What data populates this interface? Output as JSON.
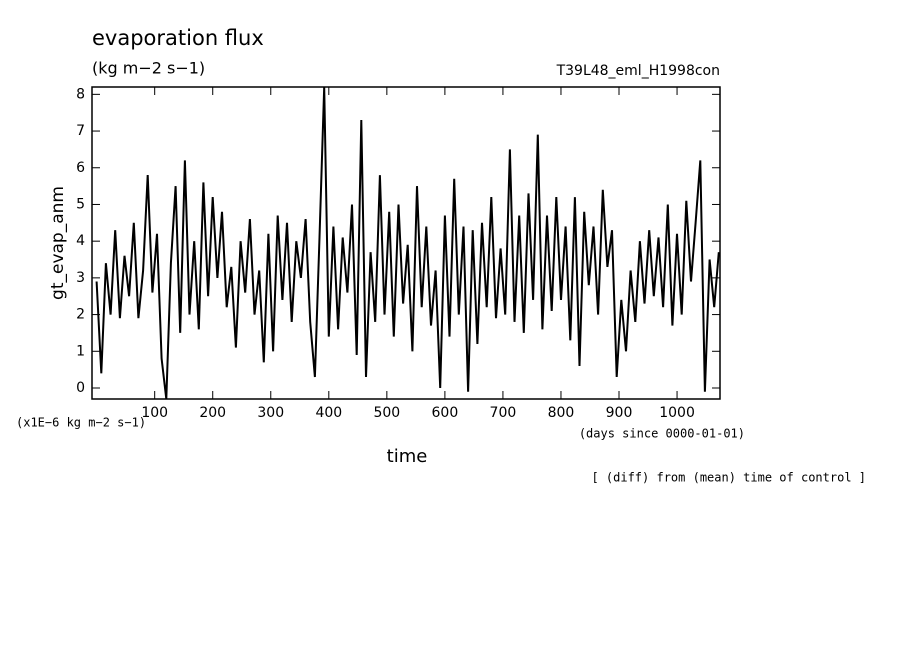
{
  "chart_data": {
    "type": "line",
    "title": "evaporation flux",
    "subtitle": "(kg m−2 s−1)",
    "run_label": "T39L48_eml_H1998con",
    "y_label": "gt_evap_anm",
    "y_unit_label": "(x1E−6 kg m−2 s−1)",
    "x_label": "time",
    "x_unit_label": "(days since 0000-01-01)",
    "note": "[ (diff) from (mean) time of control ]",
    "xlim": [
      -8,
      1074
    ],
    "ylim": [
      -0.3,
      8.2
    ],
    "xticks": [
      100,
      200,
      300,
      400,
      500,
      600,
      700,
      800,
      900,
      1000
    ],
    "yticks": [
      0,
      1,
      2,
      3,
      4,
      5,
      6,
      7,
      8
    ],
    "color": "#000000",
    "x": [
      0,
      8,
      16,
      24,
      32,
      40,
      48,
      56,
      64,
      72,
      80,
      88,
      96,
      104,
      112,
      120,
      128,
      136,
      144,
      152,
      160,
      168,
      176,
      184,
      192,
      200,
      208,
      216,
      224,
      232,
      240,
      248,
      256,
      264,
      272,
      280,
      288,
      296,
      304,
      312,
      320,
      328,
      336,
      344,
      352,
      360,
      368,
      376,
      384,
      392,
      400,
      408,
      416,
      424,
      432,
      440,
      448,
      456,
      464,
      472,
      480,
      488,
      496,
      504,
      512,
      520,
      528,
      536,
      544,
      552,
      560,
      568,
      576,
      584,
      592,
      600,
      608,
      616,
      624,
      632,
      640,
      648,
      656,
      664,
      672,
      680,
      688,
      696,
      704,
      712,
      720,
      728,
      736,
      744,
      752,
      760,
      768,
      776,
      784,
      792,
      800,
      808,
      816,
      824,
      832,
      840,
      848,
      856,
      864,
      872,
      880,
      888,
      896,
      904,
      912,
      920,
      928,
      936,
      944,
      952,
      960,
      968,
      976,
      984,
      992,
      1000,
      1008,
      1016,
      1024,
      1032,
      1040,
      1048,
      1056,
      1064,
      1072
    ],
    "values": [
      2.9,
      0.4,
      3.4,
      2.0,
      4.3,
      1.9,
      3.6,
      2.5,
      4.5,
      1.9,
      3.2,
      5.8,
      2.6,
      4.2,
      0.8,
      -0.3,
      3.4,
      5.5,
      1.5,
      6.2,
      2.0,
      4.0,
      1.6,
      5.6,
      2.5,
      5.2,
      3.0,
      4.8,
      2.2,
      3.3,
      1.1,
      4.0,
      2.6,
      4.6,
      2.0,
      3.2,
      0.7,
      4.2,
      1.0,
      4.7,
      2.4,
      4.5,
      1.8,
      4.0,
      3.0,
      4.6,
      1.8,
      0.3,
      4.1,
      8.2,
      1.4,
      4.4,
      1.6,
      4.1,
      2.6,
      5.0,
      0.9,
      7.3,
      0.3,
      3.7,
      1.8,
      5.8,
      2.0,
      4.8,
      1.4,
      5.0,
      2.3,
      3.9,
      1.0,
      5.5,
      2.2,
      4.4,
      1.7,
      3.2,
      0.0,
      4.7,
      1.4,
      5.7,
      2.0,
      4.4,
      -0.1,
      4.3,
      1.2,
      4.5,
      2.2,
      5.2,
      1.9,
      3.8,
      2.0,
      6.5,
      1.8,
      4.7,
      1.5,
      5.3,
      2.4,
      6.9,
      1.6,
      4.7,
      2.1,
      5.2,
      2.4,
      4.4,
      1.3,
      5.2,
      0.6,
      4.8,
      2.8,
      4.4,
      2.0,
      5.4,
      3.3,
      4.3,
      0.3,
      2.4,
      1.0,
      3.2,
      1.8,
      4.0,
      2.3,
      4.3,
      2.5,
      4.1,
      2.2,
      5.0,
      1.7,
      4.2,
      2.0,
      5.1,
      2.9,
      4.5,
      6.2,
      -0.1,
      3.5,
      2.2,
      3.7
    ]
  }
}
